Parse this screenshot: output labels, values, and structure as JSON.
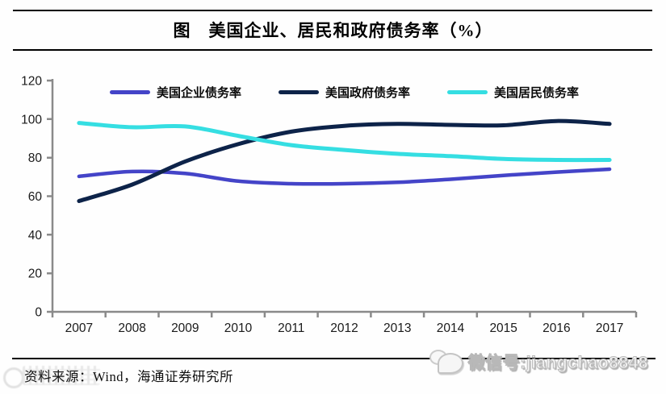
{
  "header": {
    "title": "图　美国企业、居民和政府债务率（%）"
  },
  "chart_data": {
    "type": "line",
    "title": "美国企业、居民和政府债务率（%）",
    "x": [
      "2007",
      "2008",
      "2009",
      "2010",
      "2011",
      "2012",
      "2013",
      "2014",
      "2015",
      "2016",
      "2017"
    ],
    "series": [
      {
        "name": "美国企业债务率",
        "color": "#4444C8",
        "width": 4.5,
        "values": [
          70.3,
          72.8,
          71.8,
          67.8,
          66.5,
          66.5,
          67.2,
          68.8,
          70.8,
          72.5,
          74.0
        ]
      },
      {
        "name": "美国政府债务率",
        "color": "#0D2349",
        "width": 5,
        "values": [
          57.5,
          66.0,
          78.0,
          87.0,
          93.5,
          96.5,
          97.5,
          97.0,
          96.8,
          99.0,
          97.5
        ]
      },
      {
        "name": "美国居民债务率",
        "color": "#35DEE2",
        "width": 5,
        "values": [
          98.0,
          95.8,
          96.2,
          91.3,
          86.5,
          84.0,
          82.0,
          80.8,
          79.3,
          78.8,
          78.8
        ]
      }
    ],
    "ylim": [
      0,
      120
    ],
    "yticks": [
      0,
      20,
      40,
      60,
      80,
      100,
      120
    ],
    "legend_position": "top-inside",
    "grid": false,
    "axis_color": "#8a8a8a",
    "smoothed_lines": true
  },
  "footer": {
    "source": "资料来源：Wind，海通证券研究所",
    "watermark": "微信号:jiangchao8848"
  }
}
